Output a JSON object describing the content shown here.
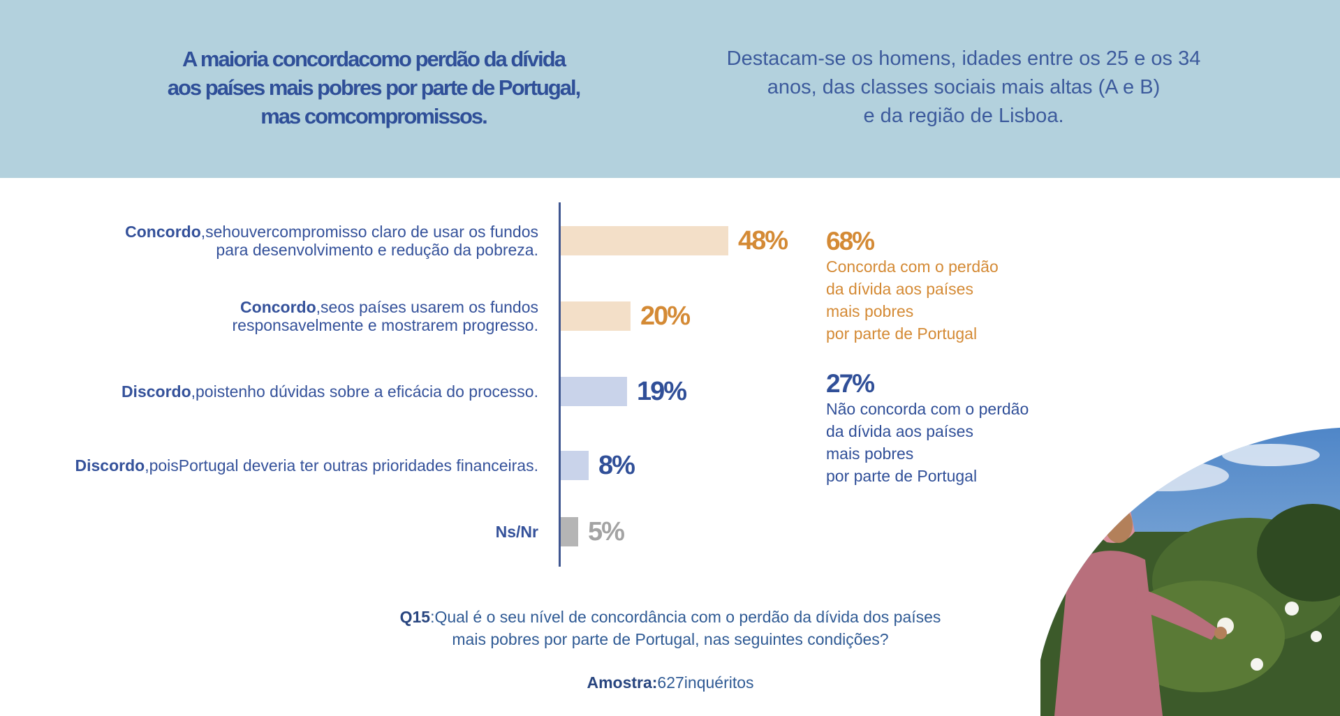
{
  "header": {
    "headline_lines": [
      "A maioria concordacomo perdão da dívida",
      "aos países mais pobres por parte de Portugal,",
      "mas comcompromissos."
    ],
    "subhead_lines": [
      "Destacam-se os homens, idades entre os 25 e os 34",
      "anos, das classes sociais mais altas (A e B)",
      "e da região de Lisboa."
    ]
  },
  "chart_data": {
    "type": "bar",
    "orientation": "horizontal",
    "categories": [
      {
        "bold": "Concordo",
        "rest_lines": [
          ",sehouvercompromisso claro de usar os fundos",
          "para desenvolvimento e redução da pobreza."
        ]
      },
      {
        "bold": "Concordo",
        "rest_lines": [
          ",seos países usarem os fundos",
          "responsavelmente e mostrarem progresso."
        ]
      },
      {
        "bold": "Discordo",
        "rest_lines": [
          ",poistenho dúvidas sobre a eficácia do processo."
        ]
      },
      {
        "bold": "Discordo",
        "rest_lines": [
          ",poisPortugal deveria ter outras prioridades financeiras."
        ]
      },
      {
        "bold": "Ns/Nr",
        "rest_lines": []
      }
    ],
    "values": [
      48,
      20,
      19,
      8,
      5
    ],
    "value_labels": [
      "48%",
      "20%",
      "19%",
      "8%",
      "5%"
    ],
    "bar_colors": [
      "#f3dfc8",
      "#f3dfc8",
      "#c9d3ea",
      "#c9d3ea",
      "#b5b5b5"
    ],
    "label_colors": [
      "#d48a35",
      "#d48a35",
      "#304f98",
      "#304f98",
      "#a3a3a3"
    ],
    "xlim": [
      0,
      100
    ]
  },
  "summary": [
    {
      "pct": "68%",
      "lines": [
        "Concorda com o perdão",
        "da dívida aos países",
        "mais pobres",
        "por parte de Portugal"
      ],
      "color": "#d48a35"
    },
    {
      "pct": "27%",
      "lines": [
        "Não concorda com o perdão",
        "da dívida aos países",
        "mais pobres",
        "por parte de Portugal"
      ],
      "color": "#304f98"
    }
  ],
  "footer": {
    "question_bold": "Q15",
    "question_lines": [
      ":Qual é o seu nível de concordância com o perdão da dívida dos países",
      "mais pobres por parte de Portugal, nas seguintes condições?"
    ],
    "sample_bold": "Amostra:",
    "sample_text": "627inquéritos"
  }
}
